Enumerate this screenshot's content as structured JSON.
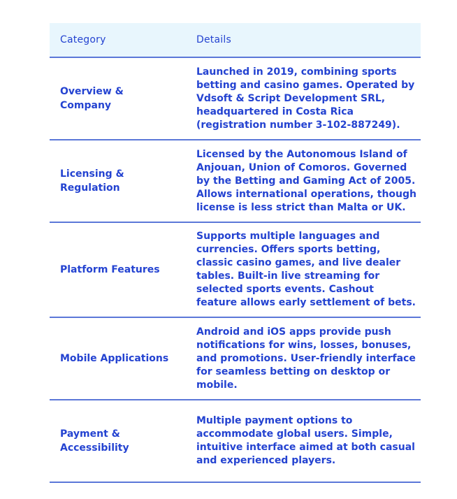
{
  "colors": {
    "header_bg": "#e8f6fd",
    "text_blue": "#2443d1",
    "divider": "#5b77d8",
    "page_bg": "#ffffff"
  },
  "table": {
    "headers": {
      "category": "Category",
      "details": "Details"
    },
    "rows": [
      {
        "category": "Overview & Company",
        "details": "Launched in 2019, combining sports betting and casino games. Operated by Vdsoft & Script Development SRL, headquartered in Costa Rica (registration number 3-102-887249)."
      },
      {
        "category": "Licensing & Regulation",
        "details": "Licensed by the Autonomous Island of Anjouan, Union of Comoros. Governed by the Betting and Gaming Act of 2005. Allows international operations, though license is less strict than Malta or UK."
      },
      {
        "category": "Platform Features",
        "details": "Supports multiple languages and currencies. Offers sports betting, classic casino games, and live dealer tables. Built-in live streaming for selected sports events. Cashout feature allows early settlement of bets."
      },
      {
        "category": "Mobile Applications",
        "details": "Android and iOS apps provide push notifications for wins, losses, bonuses, and promotions. User-friendly interface for seamless betting on desktop or mobile."
      },
      {
        "category": "Payment & Accessibility",
        "details": "Multiple payment options to accommodate global users. Simple, intuitive interface aimed at both casual and experienced players."
      }
    ]
  }
}
